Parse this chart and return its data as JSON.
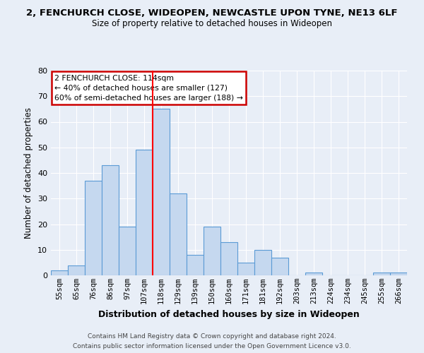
{
  "title_line1": "2, FENCHURCH CLOSE, WIDEOPEN, NEWCASTLE UPON TYNE, NE13 6LF",
  "title_line2": "Size of property relative to detached houses in Wideopen",
  "xlabel": "Distribution of detached houses by size in Wideopen",
  "ylabel": "Number of detached properties",
  "bar_labels": [
    "55sqm",
    "65sqm",
    "76sqm",
    "86sqm",
    "97sqm",
    "107sqm",
    "118sqm",
    "129sqm",
    "139sqm",
    "150sqm",
    "160sqm",
    "171sqm",
    "181sqm",
    "192sqm",
    "203sqm",
    "213sqm",
    "224sqm",
    "234sqm",
    "245sqm",
    "255sqm",
    "266sqm"
  ],
  "bar_values": [
    2,
    4,
    37,
    43,
    19,
    49,
    65,
    32,
    8,
    19,
    13,
    5,
    10,
    7,
    0,
    1,
    0,
    0,
    0,
    1,
    1
  ],
  "bar_color": "#c5d8ef",
  "bar_edge_color": "#5b9bd5",
  "ylim": [
    0,
    80
  ],
  "yticks": [
    0,
    10,
    20,
    30,
    40,
    50,
    60,
    70,
    80
  ],
  "annotation_title": "2 FENCHURCH CLOSE: 114sqm",
  "annotation_line1": "← 40% of detached houses are smaller (127)",
  "annotation_line2": "60% of semi-detached houses are larger (188) →",
  "annotation_box_color": "#ffffff",
  "annotation_box_edge": "#cc0000",
  "footer_line1": "Contains HM Land Registry data © Crown copyright and database right 2024.",
  "footer_line2": "Contains public sector information licensed under the Open Government Licence v3.0.",
  "background_color": "#e8eef7",
  "title_color": "#000000",
  "grid_color": "#ffffff"
}
